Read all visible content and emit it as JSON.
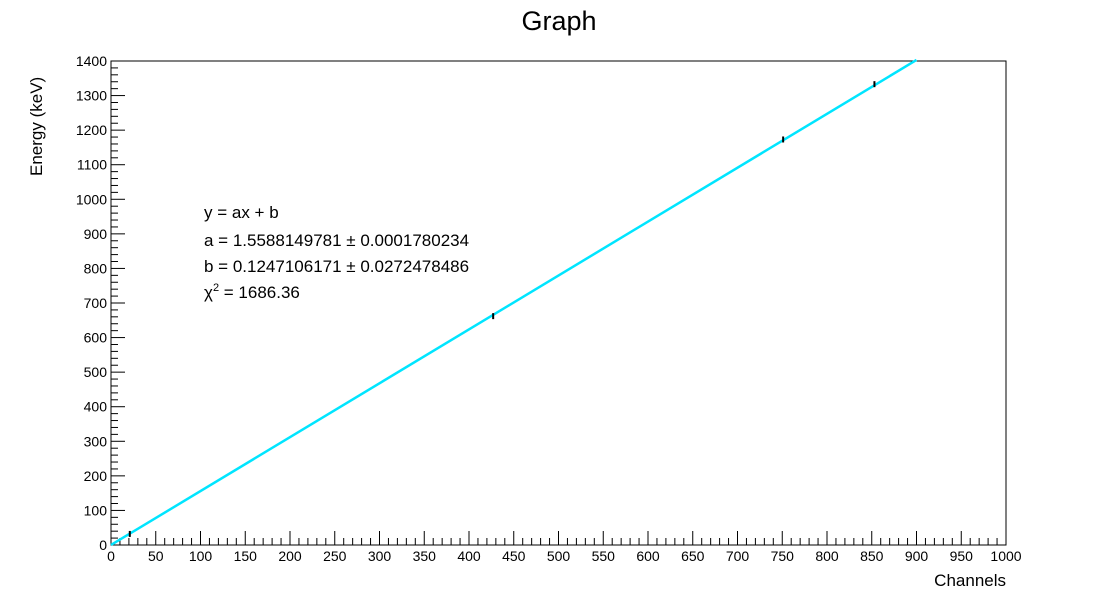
{
  "chart_data": {
    "type": "scatter",
    "title": "Graph",
    "xlabel": "Channels",
    "ylabel": "Energy (keV)",
    "xlim": [
      0,
      1000
    ],
    "ylim": [
      0,
      1400
    ],
    "x_major_step": 50,
    "y_major_step": 100,
    "grid": false,
    "legend": "none",
    "series": [
      {
        "points": [
          {
            "x": 21,
            "y": 32
          },
          {
            "x": 427,
            "y": 662
          },
          {
            "x": 751,
            "y": 1173
          },
          {
            "x": 853,
            "y": 1333
          }
        ],
        "color": "#000000"
      }
    ],
    "fit": {
      "slope": 1.5588149781,
      "intercept": 0.1247106171,
      "color": "#00e5ff",
      "x_start": 0,
      "x_end": 900
    },
    "annotations": {
      "equation": "y = ax + b",
      "a_line": "a = 1.5588149781 ± 0.0001780234",
      "b_line": "b = 0.1247106171 ± 0.0272478486",
      "chi_symbol": "χ",
      "chi_sup": "2",
      "chi_value": " = 1686.36"
    }
  }
}
